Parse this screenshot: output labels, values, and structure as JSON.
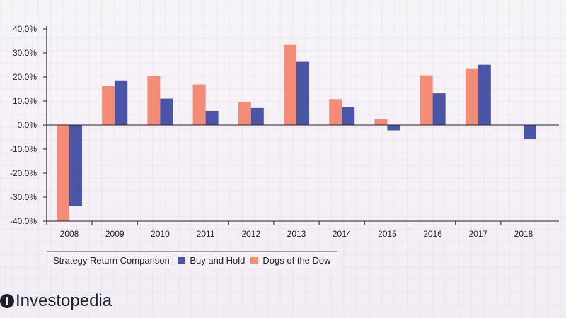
{
  "colors": {
    "buy_and_hold": "#4a55a8",
    "dogs_of_the_dow": "#f28c76",
    "axis": "#222222",
    "grid": "#e2dde6"
  },
  "chart_data": {
    "type": "bar",
    "categories": [
      "2008",
      "2009",
      "2010",
      "2011",
      "2012",
      "2013",
      "2014",
      "2015",
      "2016",
      "2017",
      "2018"
    ],
    "series": [
      {
        "name": "Dogs of the Dow",
        "values": [
          -40.0,
          16.2,
          20.3,
          16.9,
          9.6,
          33.6,
          10.8,
          2.5,
          20.7,
          23.6,
          null
        ]
      },
      {
        "name": "Buy and Hold",
        "values": [
          -33.8,
          18.6,
          11.0,
          5.9,
          7.1,
          26.3,
          7.4,
          -2.2,
          13.2,
          25.1,
          -5.7
        ]
      }
    ],
    "y_ticks": [
      "40.0%",
      "30.0%",
      "20.0%",
      "10.0%",
      "0.0%",
      "-10.0%",
      "-20.0%",
      "-30.0%",
      "-40.0%"
    ],
    "ylim": [
      -40,
      40
    ],
    "legend": {
      "title": "Strategy Return Comparison:",
      "items": [
        "Buy and Hold",
        "Dogs of the Dow"
      ],
      "placement": "bottom-left"
    },
    "grid": true
  },
  "brand": {
    "name": "Investopedia"
  }
}
